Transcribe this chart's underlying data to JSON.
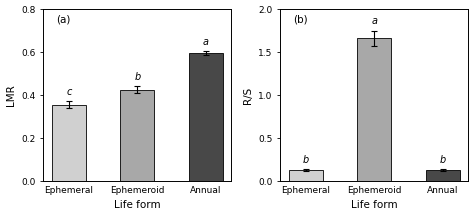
{
  "panel_a": {
    "title": "(a)",
    "categories": [
      "Ephemeral",
      "Ephemeroid",
      "Annual"
    ],
    "values": [
      0.355,
      0.425,
      0.595
    ],
    "errors": [
      0.015,
      0.015,
      0.01
    ],
    "letters": [
      "c",
      "b",
      "a"
    ],
    "bar_colors": [
      "#d0d0d0",
      "#a8a8a8",
      "#484848"
    ],
    "ylabel": "LMR",
    "xlabel": "Life form",
    "ylim": [
      0.0,
      0.8
    ],
    "yticks": [
      0.0,
      0.2,
      0.4,
      0.6,
      0.8
    ]
  },
  "panel_b": {
    "title": "(b)",
    "categories": [
      "Ephemeral",
      "Ephemeroid",
      "Annual"
    ],
    "values": [
      0.13,
      1.66,
      0.125
    ],
    "errors": [
      0.012,
      0.09,
      0.012
    ],
    "letters": [
      "b",
      "a",
      "b"
    ],
    "bar_colors": [
      "#d0d0d0",
      "#a8a8a8",
      "#484848"
    ],
    "ylabel": "R/S",
    "xlabel": "Life form",
    "ylim": [
      0.0,
      2.0
    ],
    "yticks": [
      0.0,
      0.5,
      1.0,
      1.5,
      2.0
    ]
  }
}
